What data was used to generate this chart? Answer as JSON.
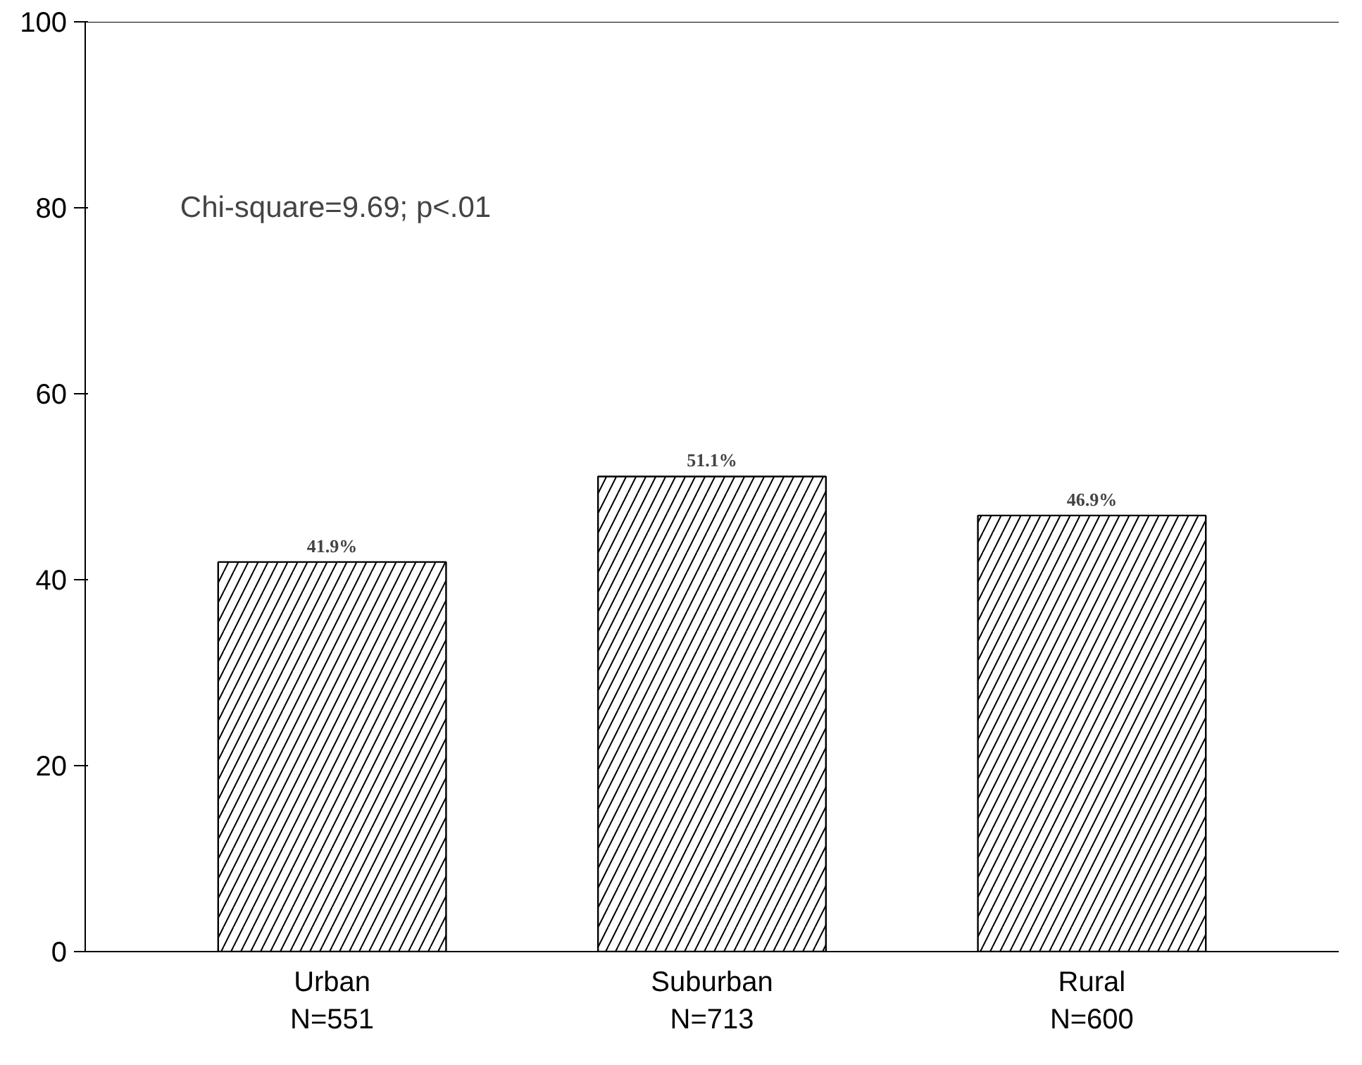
{
  "chart_data": {
    "type": "bar",
    "categories": [
      "Urban\nN=551",
      "Suburban\nN=713",
      "Rural\nN=600"
    ],
    "values": [
      41.9,
      51.1,
      46.9
    ],
    "value_labels": [
      "41.9%",
      "51.1%",
      "46.9%"
    ],
    "color": "#ffffff",
    "ylim": [
      0,
      100
    ],
    "yticks": [
      0,
      20,
      40,
      60,
      80,
      100
    ],
    "grid": false,
    "annotations": [
      {
        "text": "Chi-square=9.69; p<.01"
      }
    ]
  }
}
